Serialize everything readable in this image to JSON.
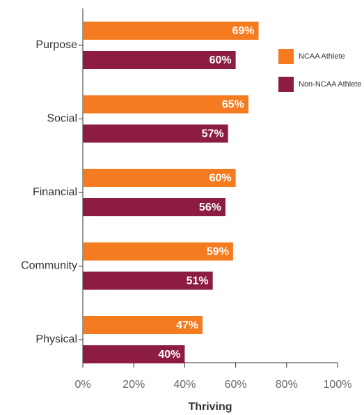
{
  "chart_data": {
    "type": "hbar",
    "x_label": "Thriving",
    "categories": [
      "Purpose",
      "Social",
      "Financial",
      "Community",
      "Physical"
    ],
    "series": [
      {
        "name": "NCAA Athlete",
        "color": "#f47b20",
        "values": [
          69,
          65,
          60,
          59,
          47
        ],
        "value_labels": [
          "69%",
          "65%",
          "60%",
          "59%",
          "47%"
        ]
      },
      {
        "name": "Non-NCAA Athlete",
        "color": "#8c1d40",
        "values": [
          60,
          57,
          56,
          51,
          40
        ],
        "value_labels": [
          "60%",
          "57%",
          "56%",
          "51%",
          "40%"
        ]
      }
    ],
    "xlim": [
      0,
      100
    ],
    "xticks": [
      {
        "value": 0,
        "label": "0%"
      },
      {
        "value": 20,
        "label": "20%"
      },
      {
        "value": 40,
        "label": "40%"
      },
      {
        "value": 60,
        "label": "60%"
      },
      {
        "value": 80,
        "label": "80%"
      },
      {
        "value": 100,
        "label": "100%"
      }
    ],
    "legend": "upper right"
  }
}
